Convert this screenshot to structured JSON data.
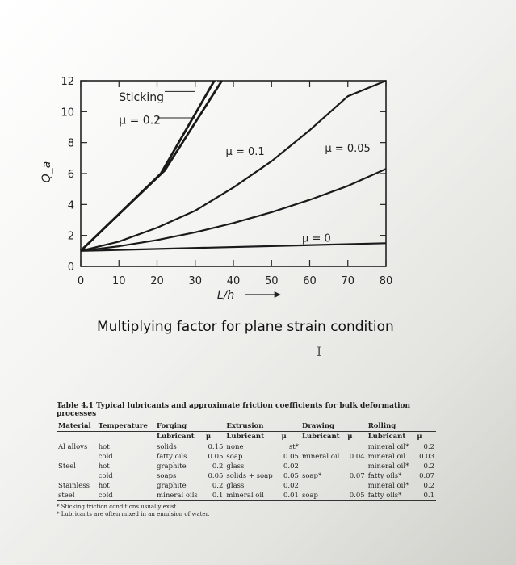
{
  "chart_data": {
    "type": "line",
    "title": "Multiplying factor for plane strain condition",
    "xlabel": "L/h",
    "ylabel": "Q_a",
    "xlim": [
      0,
      80
    ],
    "ylim": [
      0,
      12
    ],
    "x_ticks": [
      0,
      10,
      20,
      30,
      40,
      50,
      60,
      70,
      80
    ],
    "y_ticks": [
      0,
      2,
      4,
      6,
      8,
      10,
      12
    ],
    "series": [
      {
        "name": "Sticking",
        "x": [
          0,
          21,
          35
        ],
        "y": [
          1,
          6,
          12
        ]
      },
      {
        "name": "μ = 0.2",
        "x": [
          0,
          22,
          37
        ],
        "y": [
          1,
          6.2,
          12
        ]
      },
      {
        "name": "μ = 0.1",
        "x": [
          0,
          10,
          20,
          30,
          40,
          50,
          60,
          70,
          80
        ],
        "y": [
          1,
          1.6,
          2.5,
          3.6,
          5.1,
          6.8,
          8.8,
          11.0,
          12
        ]
      },
      {
        "name": "μ = 0.05",
        "x": [
          0,
          10,
          20,
          30,
          40,
          50,
          60,
          70,
          80
        ],
        "y": [
          1,
          1.3,
          1.7,
          2.2,
          2.8,
          3.5,
          4.3,
          5.2,
          6.3
        ]
      },
      {
        "name": "μ = 0",
        "x": [
          0,
          80
        ],
        "y": [
          1,
          1.5
        ]
      }
    ],
    "annotations": [
      "Sticking",
      "μ = 0.2",
      "μ = 0.1",
      "μ = 0.05",
      "μ = 0"
    ]
  },
  "table": {
    "title": "Table 4.1 Typical lubricants and approximate friction coefficients for bulk deformation processes",
    "headers": [
      "Material",
      "Temperature",
      "Forging",
      "Extrusion",
      "Drawing",
      "Rolling"
    ],
    "subheaders": [
      "Lubricant",
      "μ",
      "Lubricant",
      "μ",
      "Lubricant",
      "μ",
      "Lubricant",
      "μ"
    ],
    "rows": [
      {
        "material": "Al alloys",
        "temp": "hot",
        "f_lub": "solids",
        "f_mu": "0.15",
        "e_lub": "none",
        "e_mu": "st*",
        "d_lub": "",
        "d_mu": "",
        "r_lub": "mineral oil*",
        "r_mu": "0.2"
      },
      {
        "material": "",
        "temp": "cold",
        "f_lub": "fatty oils",
        "f_mu": "0.05",
        "e_lub": "soap",
        "e_mu": "0.05",
        "d_lub": "mineral oil",
        "d_mu": "0.04",
        "r_lub": "mineral oil",
        "r_mu": "0.03"
      },
      {
        "material": "Steel",
        "temp": "hot",
        "f_lub": "graphite",
        "f_mu": "0.2",
        "e_lub": "glass",
        "e_mu": "0.02",
        "d_lub": "",
        "d_mu": "",
        "r_lub": "mineral oil*",
        "r_mu": "0.2"
      },
      {
        "material": "",
        "temp": "cold",
        "f_lub": "soaps",
        "f_mu": "0.05",
        "e_lub": "solids + soap",
        "e_mu": "0.05",
        "d_lub": "soap*",
        "d_mu": "0.07",
        "r_lub": "fatty oils*",
        "r_mu": "0.07"
      },
      {
        "material": "Stainless",
        "temp": "hot",
        "f_lub": "graphite",
        "f_mu": "0.2",
        "e_lub": "glass",
        "e_mu": "0.02",
        "d_lub": "",
        "d_mu": "",
        "r_lub": "mineral oil*",
        "r_mu": "0.2"
      },
      {
        "material": "steel",
        "temp": "cold",
        "f_lub": "mineral oils",
        "f_mu": "0.1",
        "e_lub": "mineral oil",
        "e_mu": "0.01",
        "d_lub": "soap",
        "d_mu": "0.05",
        "r_lub": "fatty oils*",
        "r_mu": "0.1"
      }
    ],
    "footnotes": [
      "* Sticking friction conditions usually exist.",
      "* Lubricants are often mixed in an emulsion of water."
    ]
  }
}
